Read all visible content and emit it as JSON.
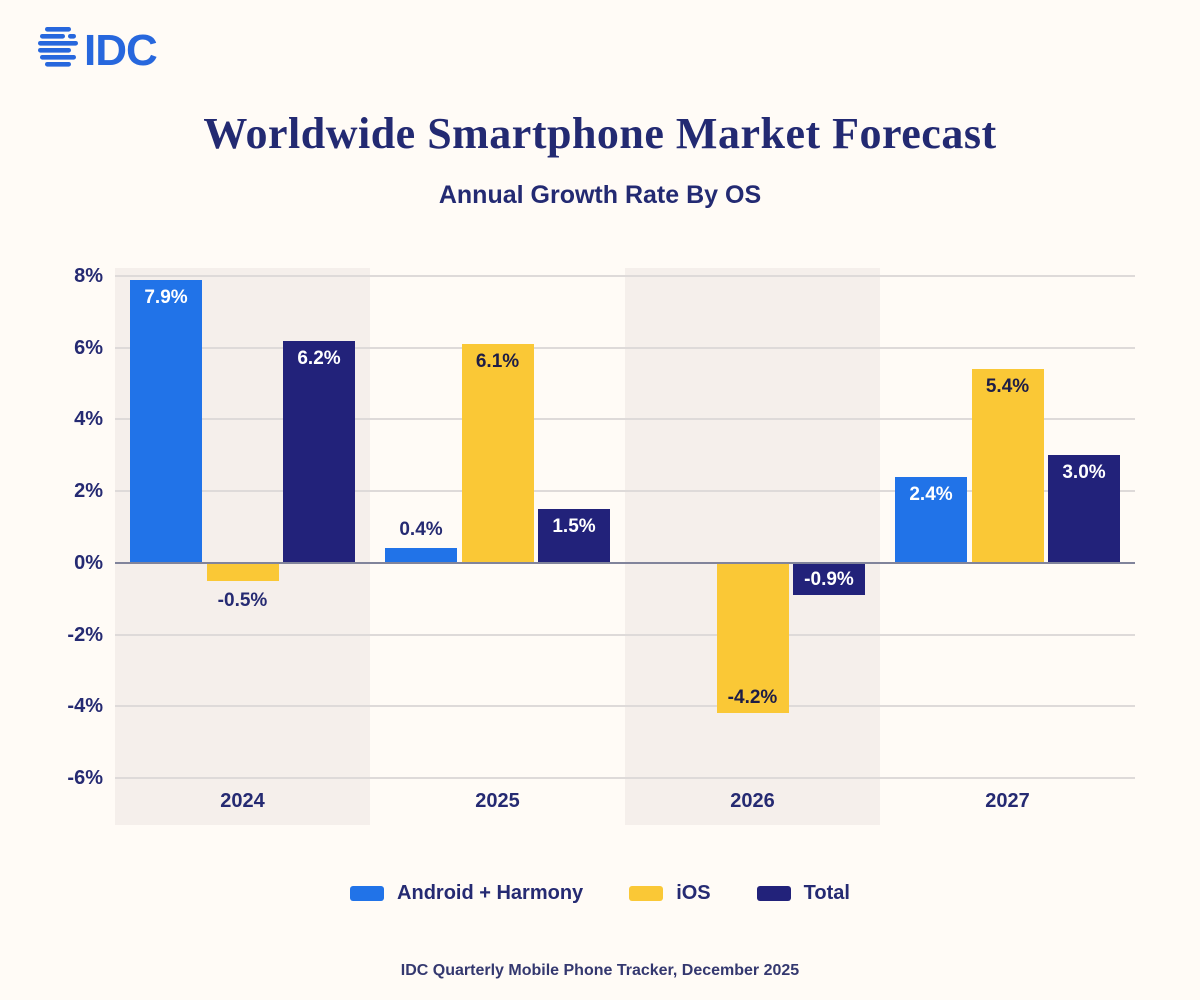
{
  "logo": {
    "text": "IDC",
    "color": "#2767dd"
  },
  "header": {
    "title": "Worldwide Smartphone Market Forecast",
    "subtitle": "Annual Growth Rate By OS"
  },
  "footer": {
    "source": "IDC Quarterly Mobile Phone Tracker, December 2025"
  },
  "colors": {
    "background": "#fffbf6",
    "band": "#f5efeb",
    "gridline": "#dedad9",
    "zero_line": "#81849b",
    "text_navy": "#252a72"
  },
  "chart_data": {
    "type": "bar",
    "title": "Worldwide Smartphone Market Forecast",
    "subtitle": "Annual Growth Rate By OS",
    "categories": [
      "2024",
      "2025",
      "2026",
      "2027"
    ],
    "series": [
      {
        "name": "Android + Harmony",
        "color": "#2173e8",
        "inside_label_color": "#ffffff",
        "points": [
          {
            "value": 7.9,
            "label": "7.9%",
            "label_pos": "inside-top"
          },
          {
            "value": 0.4,
            "label": "0.4%",
            "label_pos": "above"
          },
          {
            "value": null,
            "label": "",
            "label_pos": "none"
          },
          {
            "value": 2.4,
            "label": "2.4%",
            "label_pos": "inside-top"
          }
        ]
      },
      {
        "name": "iOS",
        "color": "#fac836",
        "inside_label_color": "#1d1d46",
        "points": [
          {
            "value": -0.5,
            "label": "-0.5%",
            "label_pos": "below"
          },
          {
            "value": 6.1,
            "label": "6.1%",
            "label_pos": "inside-top"
          },
          {
            "value": -4.2,
            "label": "-4.2%",
            "label_pos": "inside-bottom"
          },
          {
            "value": 5.4,
            "label": "5.4%",
            "label_pos": "inside-top"
          }
        ]
      },
      {
        "name": "Total",
        "color": "#22227a",
        "inside_label_color": "#ffffff",
        "points": [
          {
            "value": 6.2,
            "label": "6.2%",
            "label_pos": "inside-top"
          },
          {
            "value": 1.5,
            "label": "1.5%",
            "label_pos": "inside-top"
          },
          {
            "value": -0.9,
            "label": "-0.9%",
            "label_pos": "inside-bottom"
          },
          {
            "value": 3.0,
            "label": "3.0%",
            "label_pos": "inside-top"
          }
        ]
      }
    ],
    "y_ticks": [
      "8%",
      "6%",
      "4%",
      "2%",
      "0%",
      "-2%",
      "-4%",
      "-6%"
    ],
    "y_tick_values": [
      8,
      6,
      4,
      2,
      0,
      -2,
      -4,
      -6
    ],
    "ylim": [
      -6,
      8
    ],
    "grid": true,
    "shaded_category_columns": [
      0,
      2
    ],
    "legend_position": "bottom",
    "legend": [
      {
        "label": "Android + Harmony",
        "color": "#2173e8"
      },
      {
        "label": "iOS",
        "color": "#fac836"
      },
      {
        "label": "Total",
        "color": "#22227a"
      }
    ]
  }
}
